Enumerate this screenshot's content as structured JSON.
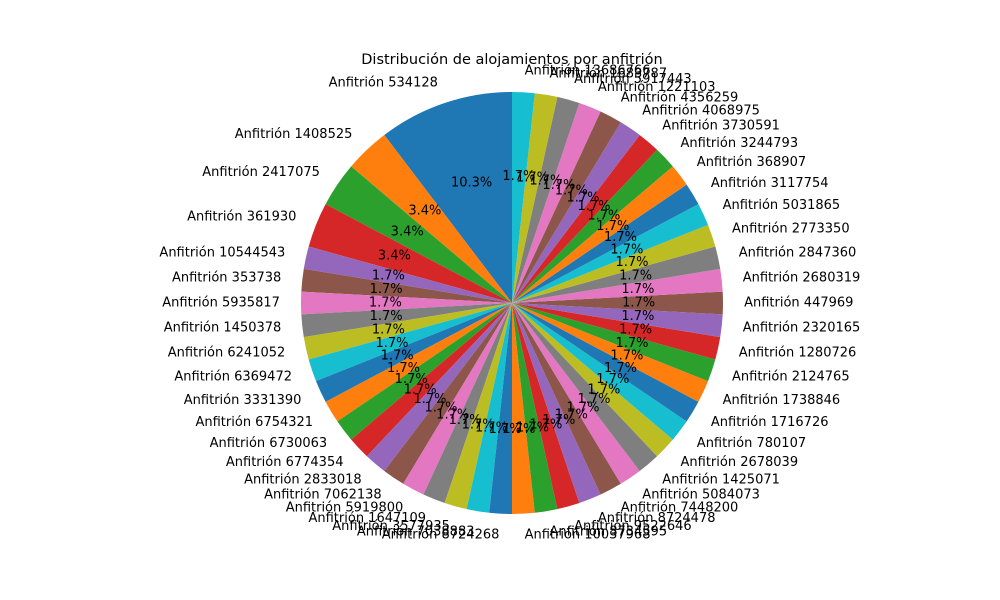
{
  "chart_data": {
    "type": "pie",
    "title": "Distribución de alojamientos por anfitrión",
    "start_angle_deg": 90,
    "direction": "counterclockwise",
    "label_order": "counterclockwise",
    "autopct_format": "{:.1f}%",
    "colors": [
      "#1f77b4",
      "#ff7f0e",
      "#2ca02c",
      "#d62728",
      "#9467bd",
      "#8c564b",
      "#e377c2",
      "#7f7f7f",
      "#bcbd22",
      "#17becf"
    ],
    "labels": [
      "Anfitrión 534128",
      "Anfitrión 1408525",
      "Anfitrión 2417075",
      "Anfitrión 361930",
      "Anfitrión 10544543",
      "Anfitrión 353738",
      "Anfitrión 5935817",
      "Anfitrión 1450378",
      "Anfitrión 6241052",
      "Anfitrión 6369472",
      "Anfitrión 3331390",
      "Anfitrión 6754321",
      "Anfitrión 6730063",
      "Anfitrión 6774354",
      "Anfitrión 2833018",
      "Anfitrión 7062138",
      "Anfitrión 5919800",
      "Anfitrión 1647109",
      "Anfitrión 3577935",
      "Anfitrión 7038883",
      "Anfitrión 8724268",
      "Anfitrión 10037968",
      "Anfitrión 8734595",
      "Anfitrión 9522646",
      "Anfitrión 8724478",
      "Anfitrión 7448200",
      "Anfitrión 5084073",
      "Anfitrión 1425071",
      "Anfitrión 2678039",
      "Anfitrión 780107",
      "Anfitrión 1716726",
      "Anfitrión 1738846",
      "Anfitrión 2124765",
      "Anfitrión 1280726",
      "Anfitrión 2320165",
      "Anfitrión 447969",
      "Anfitrión 2680319",
      "Anfitrión 2847360",
      "Anfitrión 2773350",
      "Anfitrión 5031865",
      "Anfitrión 3117754",
      "Anfitrión 368907",
      "Anfitrión 3244793",
      "Anfitrión 3730591",
      "Anfitrión 4068975",
      "Anfitrión 4356259",
      "Anfitrión 1221103",
      "Anfitrión 5917443",
      "Anfitrión 1683787",
      "Anfitrión 13686766"
    ],
    "values": [
      6,
      2,
      2,
      2,
      1,
      1,
      1,
      1,
      1,
      1,
      1,
      1,
      1,
      1,
      1,
      1,
      1,
      1,
      1,
      1,
      1,
      1,
      1,
      1,
      1,
      1,
      1,
      1,
      1,
      1,
      1,
      1,
      1,
      1,
      1,
      1,
      1,
      1,
      1,
      1,
      1,
      1,
      1,
      1,
      1,
      1,
      1,
      1,
      1,
      1
    ]
  }
}
